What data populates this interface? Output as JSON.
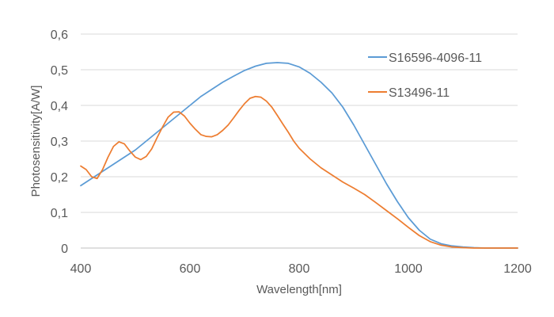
{
  "chart_data": {
    "type": "line",
    "title": "",
    "xlabel": "Wavelength[nm]",
    "ylabel": "Photosensitivity[A/W]",
    "xlim": [
      400,
      1200
    ],
    "ylim": [
      0,
      0.6
    ],
    "x_ticks": [
      400,
      600,
      800,
      1000,
      1200
    ],
    "x_tick_labels": [
      "400",
      "600",
      "800",
      "1000",
      "1200"
    ],
    "y_ticks": [
      0,
      0.1,
      0.2,
      0.3,
      0.4,
      0.5,
      0.6
    ],
    "y_tick_labels": [
      "0",
      "0,1",
      "0,2",
      "0,3",
      "0,4",
      "0,5",
      "0,6"
    ],
    "grid": "horizontal",
    "legend_position": "right",
    "series": [
      {
        "name": "S16596-4096-11",
        "color": "#5b9bd5",
        "x": [
          400,
          420,
          440,
          460,
          480,
          500,
          520,
          540,
          560,
          580,
          600,
          620,
          640,
          660,
          680,
          700,
          720,
          740,
          760,
          780,
          800,
          820,
          840,
          860,
          880,
          900,
          920,
          940,
          960,
          980,
          1000,
          1020,
          1040,
          1060,
          1080,
          1100,
          1120,
          1140,
          1160,
          1180,
          1200
        ],
        "y": [
          0.175,
          0.195,
          0.215,
          0.235,
          0.255,
          0.275,
          0.3,
          0.325,
          0.35,
          0.375,
          0.4,
          0.425,
          0.445,
          0.465,
          0.482,
          0.498,
          0.51,
          0.518,
          0.52,
          0.518,
          0.508,
          0.49,
          0.465,
          0.435,
          0.395,
          0.345,
          0.29,
          0.235,
          0.18,
          0.13,
          0.085,
          0.05,
          0.025,
          0.012,
          0.006,
          0.003,
          0.001,
          0,
          0,
          0,
          0
        ]
      },
      {
        "name": "S13496-11",
        "color": "#ed7d31",
        "x": [
          400,
          410,
          420,
          430,
          440,
          450,
          460,
          470,
          480,
          490,
          500,
          510,
          520,
          530,
          540,
          550,
          560,
          570,
          580,
          590,
          600,
          610,
          620,
          630,
          640,
          650,
          660,
          670,
          680,
          690,
          700,
          710,
          720,
          730,
          740,
          750,
          760,
          770,
          780,
          790,
          800,
          820,
          840,
          860,
          880,
          900,
          920,
          940,
          960,
          980,
          1000,
          1020,
          1040,
          1060,
          1080,
          1100,
          1120,
          1140,
          1160,
          1180,
          1200
        ],
        "y": [
          0.23,
          0.22,
          0.2,
          0.195,
          0.22,
          0.255,
          0.285,
          0.298,
          0.292,
          0.272,
          0.255,
          0.248,
          0.257,
          0.278,
          0.31,
          0.34,
          0.367,
          0.381,
          0.382,
          0.37,
          0.35,
          0.333,
          0.318,
          0.313,
          0.312,
          0.318,
          0.33,
          0.345,
          0.365,
          0.386,
          0.405,
          0.42,
          0.425,
          0.423,
          0.412,
          0.395,
          0.372,
          0.348,
          0.325,
          0.3,
          0.28,
          0.25,
          0.225,
          0.205,
          0.185,
          0.168,
          0.15,
          0.128,
          0.105,
          0.082,
          0.058,
          0.035,
          0.018,
          0.008,
          0.003,
          0.001,
          0,
          0,
          0,
          0,
          0
        ]
      }
    ]
  }
}
